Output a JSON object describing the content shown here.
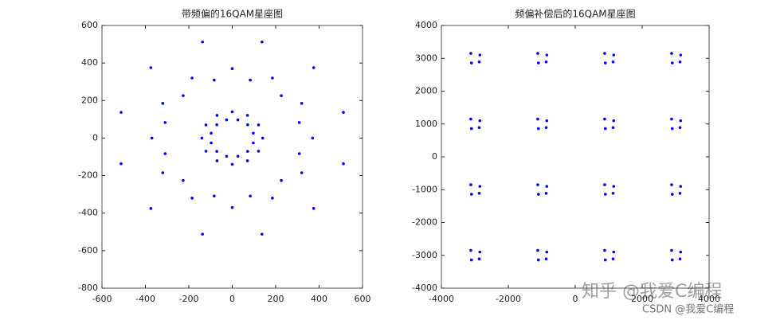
{
  "chart_data": [
    {
      "type": "scatter",
      "title": "带频偏的16QAM星座图",
      "color": "#0000ff",
      "xlim": [
        -600,
        600
      ],
      "ylim": [
        -800,
        600
      ],
      "xticks": [
        -600,
        -400,
        -200,
        0,
        200,
        400,
        600
      ],
      "yticks": [
        -800,
        -600,
        -400,
        -200,
        0,
        200,
        400,
        600
      ],
      "x": [
        140,
        121,
        70,
        0,
        -70,
        -121,
        -140,
        -121,
        -70,
        0,
        70,
        121,
        97,
        71,
        26,
        -26,
        -71,
        -97,
        -97,
        -71,
        -26,
        26,
        71,
        97,
        370,
        320,
        185,
        0,
        -185,
        -320,
        -370,
        -320,
        -185,
        0,
        185,
        320,
        309,
        226,
        83,
        -83,
        -226,
        -309,
        -309,
        -226,
        -83,
        83,
        226,
        309,
        512,
        375,
        137,
        -137,
        -375,
        -512,
        -512,
        -375,
        -137,
        137,
        375,
        512
      ],
      "y": [
        0,
        70,
        121,
        140,
        121,
        70,
        0,
        -70,
        -121,
        -140,
        -121,
        -70,
        26,
        71,
        97,
        97,
        71,
        26,
        -26,
        -71,
        -97,
        -97,
        -71,
        -26,
        0,
        185,
        320,
        370,
        320,
        185,
        0,
        -185,
        -320,
        -370,
        -320,
        -185,
        83,
        226,
        309,
        309,
        226,
        83,
        -83,
        -226,
        -309,
        -309,
        -226,
        -83,
        137,
        375,
        512,
        512,
        375,
        137,
        -137,
        -375,
        -512,
        -512,
        -375,
        -137
      ]
    },
    {
      "type": "scatter",
      "title": "频偏补偿后的16QAM星座图",
      "color": "#0000ff",
      "xlim": [
        -4000,
        4000
      ],
      "ylim": [
        -4000,
        4000
      ],
      "xticks": [
        -4000,
        -2000,
        0,
        2000,
        4000
      ],
      "yticks": [
        -4000,
        -3000,
        -2000,
        -1000,
        0,
        1000,
        2000,
        3000,
        4000
      ],
      "x": [
        -2850,
        -3120,
        -3100,
        -2870,
        -850,
        -1120,
        -1100,
        -870,
        1150,
        880,
        900,
        1130,
        3150,
        2880,
        2900,
        3130,
        -2850,
        -3120,
        -3100,
        -2870,
        -850,
        -1120,
        -1100,
        -870,
        1150,
        880,
        900,
        1130,
        3150,
        2880,
        2900,
        3130,
        -2850,
        -3120,
        -3100,
        -2870,
        -850,
        -1120,
        -1100,
        -870,
        1150,
        880,
        900,
        1130,
        3150,
        2880,
        2900,
        3130,
        -2850,
        -3120,
        -3100,
        -2870,
        -850,
        -1120,
        -1100,
        -870,
        1150,
        880,
        900,
        1130,
        3150,
        2880,
        2900,
        3130
      ],
      "y": [
        3100,
        3150,
        2860,
        2890,
        3100,
        3150,
        2860,
        2890,
        3100,
        3150,
        2860,
        2890,
        3100,
        3150,
        2860,
        2890,
        1100,
        1150,
        860,
        890,
        1100,
        1150,
        860,
        890,
        1100,
        1150,
        860,
        890,
        1100,
        1150,
        860,
        890,
        -900,
        -850,
        -1140,
        -1110,
        -900,
        -850,
        -1140,
        -1110,
        -900,
        -850,
        -1140,
        -1110,
        -900,
        -850,
        -1140,
        -1110,
        -2900,
        -2850,
        -3140,
        -3110,
        -2900,
        -2850,
        -3140,
        -3110,
        -2900,
        -2850,
        -3140,
        -3110,
        -2900,
        -2850,
        -3140,
        -3110
      ]
    }
  ],
  "watermark": {
    "zhihu": "知乎 @我爱C编程",
    "csdn": "CSDN @我爱C编程"
  }
}
